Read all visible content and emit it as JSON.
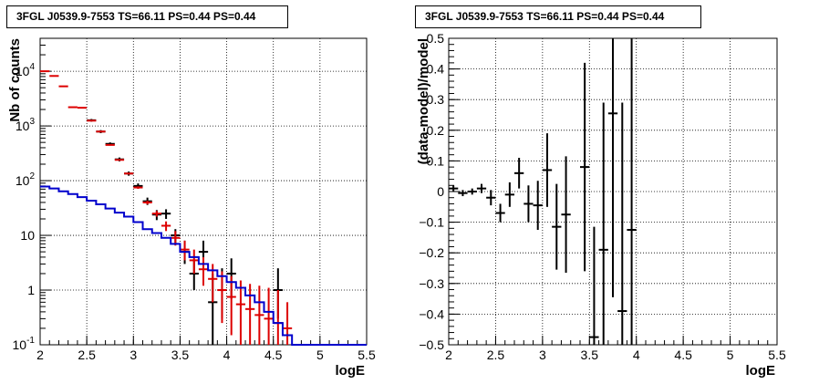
{
  "chart_data": [
    {
      "type": "histogram",
      "title": "3FGL J0539.9-7553 TS=66.11 PS=0.44 PS=0.44",
      "xlabel": "logE",
      "ylabel": "Nb of counts",
      "xlim": [
        2,
        5.5
      ],
      "ylim": [
        0.1,
        40000
      ],
      "y_scale": "log",
      "grid": true,
      "legend": "none",
      "x_ticks": [
        "2",
        "2.5",
        "3",
        "3.5",
        "4",
        "4.5",
        "5",
        "5.5"
      ],
      "y_ticks": [
        {
          "value": 0.1,
          "base": "10",
          "exp": "-1",
          "label": "10"
        },
        {
          "value": 1,
          "base": "1",
          "exp": "",
          "label": "1"
        },
        {
          "value": 10,
          "base": "10",
          "exp": "",
          "label": "10"
        },
        {
          "value": 100,
          "base": "10",
          "exp": "2",
          "label": "10"
        },
        {
          "value": 1000,
          "base": "10",
          "exp": "3",
          "label": "10"
        },
        {
          "value": 10000,
          "base": "10",
          "exp": "4",
          "label": "10"
        }
      ],
      "bin_width": 0.1,
      "series": [
        {
          "role": "data",
          "color": "#000000",
          "points": [
            {
              "x": 2.55,
              "y": 1270,
              "lo": 1200,
              "hi": 1340
            },
            {
              "x": 2.65,
              "y": 790,
              "lo": 740,
              "hi": 840
            },
            {
              "x": 2.75,
              "y": 470,
              "lo": 440,
              "hi": 500
            },
            {
              "x": 2.85,
              "y": 245,
              "lo": 225,
              "hi": 265
            },
            {
              "x": 2.95,
              "y": 135,
              "lo": 123,
              "hi": 147
            },
            {
              "x": 3.05,
              "y": 80,
              "lo": 71,
              "hi": 89
            },
            {
              "x": 3.15,
              "y": 42,
              "lo": 36,
              "hi": 49
            },
            {
              "x": 3.25,
              "y": 24,
              "lo": 19,
              "hi": 29
            },
            {
              "x": 3.35,
              "y": 25,
              "lo": 20,
              "hi": 30
            },
            {
              "x": 3.45,
              "y": 10,
              "lo": 7,
              "hi": 13
            },
            {
              "x": 3.55,
              "y": 5,
              "lo": 3,
              "hi": 8
            },
            {
              "x": 3.65,
              "y": 2,
              "lo": 1,
              "hi": 3.5
            },
            {
              "x": 3.75,
              "y": 5,
              "lo": 3,
              "hi": 8
            },
            {
              "x": 3.85,
              "y": 0.6,
              "lo": 0.1,
              "hi": 2
            },
            {
              "x": 3.95,
              "y": 1,
              "lo": 0.3,
              "hi": 2.5
            },
            {
              "x": 4.05,
              "y": 2,
              "lo": 0.7,
              "hi": 3.8
            },
            {
              "x": 4.55,
              "y": 1,
              "lo": 0.3,
              "hi": 2.5
            }
          ]
        },
        {
          "role": "model",
          "color": "#dd0000",
          "points": [
            {
              "x": 2.05,
              "y": 10000,
              "lo": 9800,
              "hi": 10200
            },
            {
              "x": 2.15,
              "y": 8200,
              "lo": 8050,
              "hi": 8350
            },
            {
              "x": 2.25,
              "y": 5300,
              "lo": 5180,
              "hi": 5420
            },
            {
              "x": 2.35,
              "y": 2200,
              "lo": 2150,
              "hi": 2250
            },
            {
              "x": 2.45,
              "y": 2150,
              "lo": 2100,
              "hi": 2200
            },
            {
              "x": 2.55,
              "y": 1250,
              "lo": 1220,
              "hi": 1280
            },
            {
              "x": 2.65,
              "y": 790,
              "lo": 770,
              "hi": 810
            },
            {
              "x": 2.75,
              "y": 450,
              "lo": 438,
              "hi": 462
            },
            {
              "x": 2.85,
              "y": 240,
              "lo": 232,
              "hi": 248
            },
            {
              "x": 2.95,
              "y": 135,
              "lo": 130,
              "hi": 140
            },
            {
              "x": 3.05,
              "y": 75,
              "lo": 71,
              "hi": 79
            },
            {
              "x": 3.15,
              "y": 40,
              "lo": 37,
              "hi": 43
            },
            {
              "x": 3.25,
              "y": 25,
              "lo": 22,
              "hi": 28
            },
            {
              "x": 3.35,
              "y": 15,
              "lo": 12,
              "hi": 18
            },
            {
              "x": 3.45,
              "y": 9,
              "lo": 6.5,
              "hi": 12
            },
            {
              "x": 3.55,
              "y": 5.5,
              "lo": 3.5,
              "hi": 8
            },
            {
              "x": 3.65,
              "y": 3.5,
              "lo": 2,
              "hi": 5.5
            },
            {
              "x": 3.75,
              "y": 2.4,
              "lo": 1.2,
              "hi": 4
            },
            {
              "x": 3.85,
              "y": 1.6,
              "lo": 0.6,
              "hi": 3
            },
            {
              "x": 3.95,
              "y": 1.0,
              "lo": 0.25,
              "hi": 2.2
            },
            {
              "x": 4.05,
              "y": 0.75,
              "lo": 0.15,
              "hi": 1.8
            },
            {
              "x": 4.15,
              "y": 0.55,
              "lo": 0.1,
              "hi": 1.5
            },
            {
              "x": 4.25,
              "y": 0.45,
              "lo": 0.1,
              "hi": 1.3
            },
            {
              "x": 4.35,
              "y": 0.35,
              "lo": 0.1,
              "hi": 1.2
            },
            {
              "x": 4.45,
              "y": 0.3,
              "lo": 0.1,
              "hi": 1.1
            },
            {
              "x": 4.55,
              "y": 0.25,
              "lo": 0.1,
              "hi": 1.0
            },
            {
              "x": 4.65,
              "y": 0.2,
              "lo": 0.1,
              "hi": 0.6
            }
          ]
        },
        {
          "role": "background",
          "color": "#0000cc",
          "step_edges": [
            2.0,
            2.1,
            2.2,
            2.3,
            2.4,
            2.5,
            2.6,
            2.7,
            2.8,
            2.9,
            3.0,
            3.1,
            3.2,
            3.3,
            3.4,
            3.5,
            3.6,
            3.7,
            3.8,
            3.9,
            4.0,
            4.1,
            4.2,
            4.3,
            4.4,
            4.5,
            4.6,
            4.7,
            5.5
          ],
          "step_values": [
            78,
            72,
            64,
            57,
            50,
            43,
            37,
            31,
            26,
            22,
            17.5,
            13,
            11,
            9,
            7,
            5,
            4,
            3,
            2.3,
            1.8,
            1.4,
            1.1,
            0.8,
            0.6,
            0.4,
            0.25,
            0.15,
            0.1
          ]
        }
      ]
    },
    {
      "type": "scatter",
      "title": "3FGL J0539.9-7553 TS=66.11 PS=0.44 PS=0.44",
      "xlabel": "logE",
      "ylabel": "(data-model)/model",
      "xlim": [
        2,
        5.5
      ],
      "ylim": [
        -0.5,
        0.5
      ],
      "grid": true,
      "legend": "none",
      "x_ticks": [
        "2",
        "2.5",
        "3",
        "3.5",
        "4",
        "4.5",
        "5",
        "5.5"
      ],
      "y_ticks": [
        "−0.5",
        "−0.4",
        "−0.3",
        "−0.2",
        "−0.1",
        "0",
        "0.1",
        "0.2",
        "0.3",
        "0.4",
        "0.5"
      ],
      "bin_width": 0.1,
      "series": [
        {
          "role": "residual",
          "color": "#000000",
          "points": [
            {
              "x": 2.05,
              "y": 0.01,
              "err": 0.01
            },
            {
              "x": 2.15,
              "y": -0.005,
              "err": 0.01
            },
            {
              "x": 2.25,
              "y": 0.0,
              "err": 0.01
            },
            {
              "x": 2.35,
              "y": 0.01,
              "err": 0.015
            },
            {
              "x": 2.45,
              "y": -0.02,
              "err": 0.025
            },
            {
              "x": 2.55,
              "y": -0.07,
              "err": 0.03
            },
            {
              "x": 2.65,
              "y": -0.01,
              "err": 0.04
            },
            {
              "x": 2.75,
              "y": 0.06,
              "err": 0.05
            },
            {
              "x": 2.85,
              "y": -0.04,
              "err": 0.06
            },
            {
              "x": 2.95,
              "y": -0.045,
              "err": 0.08
            },
            {
              "x": 3.05,
              "y": 0.07,
              "err": 0.12
            },
            {
              "x": 3.15,
              "y": -0.115,
              "err": 0.14
            },
            {
              "x": 3.25,
              "y": -0.075,
              "err": 0.19
            },
            {
              "x": 3.45,
              "y": 0.08,
              "err": 0.34
            },
            {
              "x": 3.55,
              "y": -0.475,
              "err": 0.36
            },
            {
              "x": 3.65,
              "y": -0.19,
              "err": 0.48
            },
            {
              "x": 3.75,
              "y": 0.255,
              "err": 0.6
            },
            {
              "x": 3.85,
              "y": -0.39,
              "err": 0.68
            },
            {
              "x": 3.95,
              "y": -0.125,
              "err": 0.8
            }
          ]
        }
      ]
    }
  ]
}
